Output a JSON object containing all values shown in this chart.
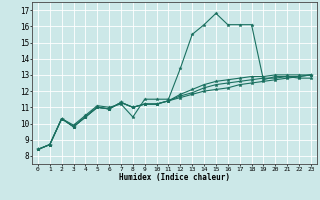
{
  "xlabel": "Humidex (Indice chaleur)",
  "background_color": "#cce8e8",
  "grid_color": "#ffffff",
  "line_color": "#1a7060",
  "xlim": [
    -0.5,
    23.5
  ],
  "ylim": [
    7.5,
    17.5
  ],
  "xticks": [
    0,
    1,
    2,
    3,
    4,
    5,
    6,
    7,
    8,
    9,
    10,
    11,
    12,
    13,
    14,
    15,
    16,
    17,
    18,
    19,
    20,
    21,
    22,
    23
  ],
  "yticks": [
    8,
    9,
    10,
    11,
    12,
    13,
    14,
    15,
    16,
    17
  ],
  "series": [
    [
      8.4,
      8.7,
      10.3,
      9.9,
      10.5,
      11.1,
      11.0,
      11.2,
      10.4,
      11.5,
      11.5,
      11.5,
      13.4,
      15.5,
      16.1,
      16.8,
      16.1,
      16.1,
      16.1,
      12.7,
      12.9,
      12.9,
      12.8,
      12.8
    ],
    [
      8.4,
      8.7,
      10.3,
      9.8,
      10.4,
      11.0,
      10.9,
      11.3,
      11.0,
      11.2,
      11.2,
      11.4,
      11.6,
      11.8,
      12.0,
      12.1,
      12.2,
      12.4,
      12.5,
      12.6,
      12.7,
      12.8,
      12.9,
      13.0
    ],
    [
      8.4,
      8.7,
      10.3,
      9.8,
      10.4,
      11.0,
      10.9,
      11.3,
      11.0,
      11.2,
      11.2,
      11.4,
      11.7,
      11.9,
      12.2,
      12.4,
      12.5,
      12.6,
      12.7,
      12.8,
      12.8,
      12.9,
      12.9,
      13.0
    ],
    [
      8.4,
      8.7,
      10.3,
      9.8,
      10.4,
      11.0,
      10.9,
      11.3,
      11.0,
      11.2,
      11.2,
      11.4,
      11.8,
      12.1,
      12.4,
      12.6,
      12.7,
      12.8,
      12.9,
      12.9,
      13.0,
      13.0,
      13.0,
      13.0
    ]
  ]
}
